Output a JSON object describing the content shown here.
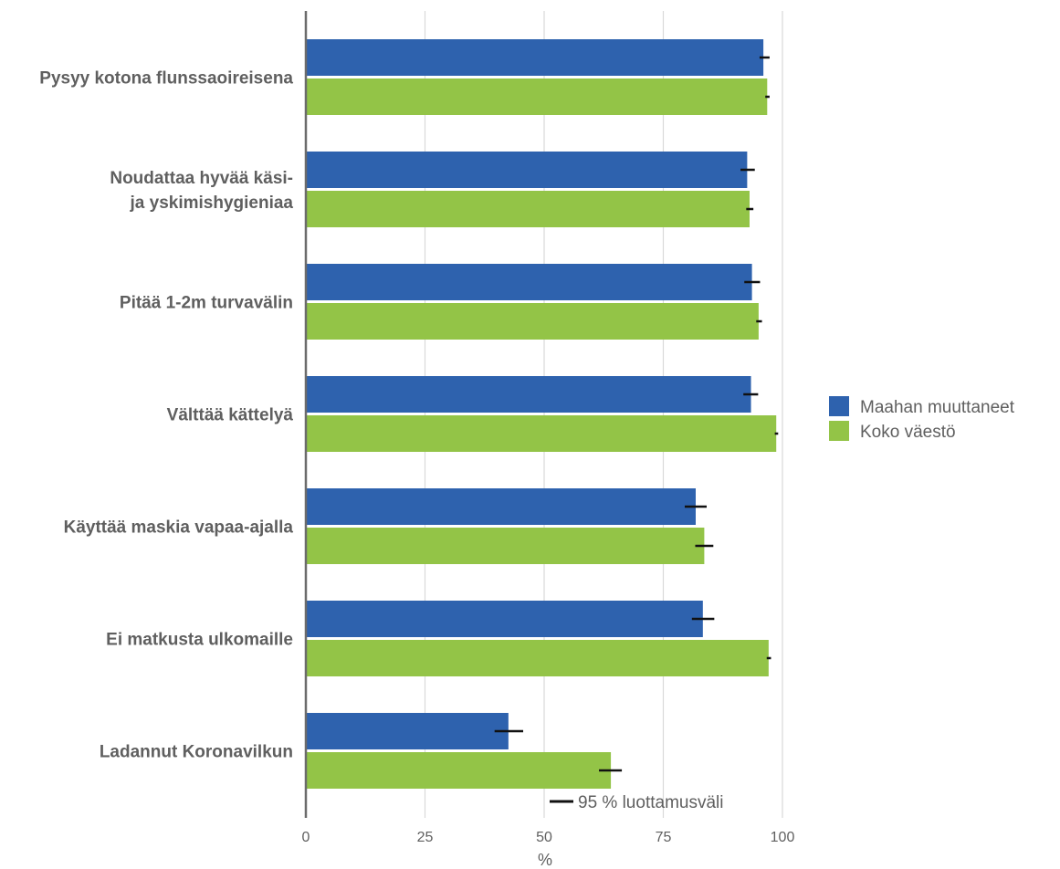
{
  "chart_data": {
    "type": "bar",
    "orientation": "horizontal",
    "categories": [
      [
        "Pysyy kotona flunssaoireisena"
      ],
      [
        "Noudattaa hyvää käsi-",
        "ja yskimishygieniaa"
      ],
      [
        "Pitää 1-2m turvavälin"
      ],
      [
        "Välttää kättelyä"
      ],
      [
        "Käyttää maskia vapaa-ajalla"
      ],
      [
        "Ei matkusta ulkomaille"
      ],
      [
        "Ladannut Koronavilkun"
      ]
    ],
    "series": [
      {
        "name": "Maahan muuttaneet",
        "color": "#2e62ae",
        "values": [
          96.0,
          92.6,
          93.6,
          93.4,
          81.8,
          83.3,
          42.5
        ],
        "ci": [
          [
            95.2,
            97.3
          ],
          [
            91.2,
            94.2
          ],
          [
            92.0,
            95.3
          ],
          [
            91.8,
            94.9
          ],
          [
            79.5,
            84.1
          ],
          [
            81.0,
            85.7
          ],
          [
            39.6,
            45.6
          ]
        ]
      },
      {
        "name": "Koko väestö",
        "color": "#93c447",
        "values": [
          96.8,
          93.1,
          95.0,
          98.7,
          83.6,
          97.1,
          64.0
        ],
        "ci": [
          [
            96.4,
            97.3
          ],
          [
            92.4,
            93.9
          ],
          [
            94.5,
            95.7
          ],
          [
            98.4,
            99.1
          ],
          [
            81.7,
            85.5
          ],
          [
            96.7,
            97.6
          ],
          [
            61.5,
            66.3
          ]
        ]
      }
    ],
    "xlim": [
      0,
      100
    ],
    "xticks": [
      "0",
      "25",
      "50",
      "75",
      "100"
    ],
    "xlabel": "%",
    "ci_note": "95 % luottamusväli",
    "grid": true,
    "legend_position": "right"
  }
}
